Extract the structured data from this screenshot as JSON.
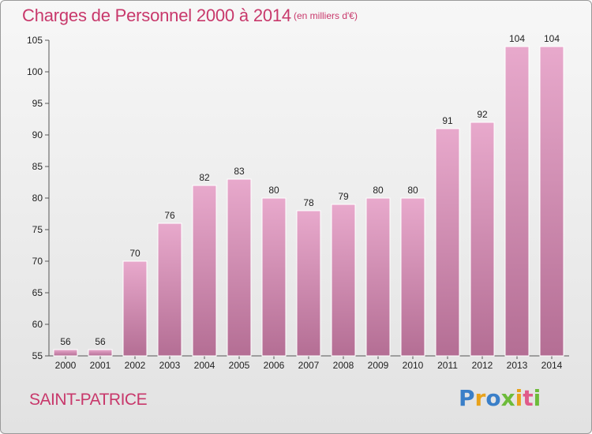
{
  "header": {
    "title": "Charges de Personnel 2000 à 2014",
    "unit": "(en milliers d'€)"
  },
  "footer": {
    "city": "SAINT-PATRICE",
    "logo": "Proxiti"
  },
  "colors": {
    "bar_top": "#e8a9cc",
    "bar_bottom": "#b46e94",
    "title": "#c8386b"
  },
  "chart_data": {
    "type": "bar",
    "title": "Charges de Personnel 2000 à 2014",
    "subtitle": "(en milliers d'€)",
    "xlabel": "",
    "ylabel": "",
    "categories": [
      "2000",
      "2001",
      "2002",
      "2003",
      "2004",
      "2005",
      "2006",
      "2007",
      "2008",
      "2009",
      "2010",
      "2011",
      "2012",
      "2013",
      "2014"
    ],
    "values": [
      56,
      56,
      70,
      76,
      82,
      83,
      80,
      78,
      79,
      80,
      80,
      91,
      92,
      104,
      104
    ],
    "ylim": [
      55,
      105
    ],
    "yticks": [
      55,
      60,
      65,
      70,
      75,
      80,
      85,
      90,
      95,
      100,
      105
    ],
    "grid": false,
    "legend": "none"
  }
}
